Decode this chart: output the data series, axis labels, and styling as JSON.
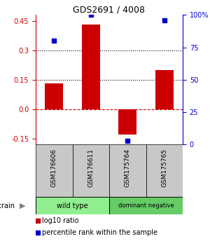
{
  "title": "GDS2691 / 4008",
  "samples": [
    "GSM176606",
    "GSM176611",
    "GSM175764",
    "GSM175765"
  ],
  "log10_ratios": [
    0.13,
    0.43,
    -0.13,
    0.2
  ],
  "percentile_ranks": [
    80,
    100,
    3,
    96
  ],
  "groups": [
    {
      "name": "wild type",
      "samples": [
        0,
        1
      ],
      "color": "#90ee90"
    },
    {
      "name": "dominant negative",
      "samples": [
        2,
        3
      ],
      "color": "#66cc66"
    }
  ],
  "ylim_left": [
    -0.18,
    0.48
  ],
  "ylim_right": [
    0,
    133.33
  ],
  "yticks_left": [
    -0.15,
    0.0,
    0.15,
    0.3,
    0.45
  ],
  "yticks_right_vals": [
    0,
    25,
    50,
    75,
    100
  ],
  "yticks_right_labels": [
    "0",
    "25",
    "50",
    "75",
    "100%"
  ],
  "hlines": [
    0.15,
    0.3
  ],
  "bar_color": "#cc0000",
  "dot_color": "#0000cc",
  "zero_line_color": "#cc0000",
  "bar_width": 0.5,
  "legend_red_label": "log10 ratio",
  "legend_blue_label": "percentile rank within the sample",
  "strain_label": "strain",
  "label_color_left": "#cc0000",
  "label_color_right": "#0000cc",
  "sample_box_color": "#c8c8c8",
  "group1_color": "#90ee90",
  "group2_color": "#66cc66"
}
